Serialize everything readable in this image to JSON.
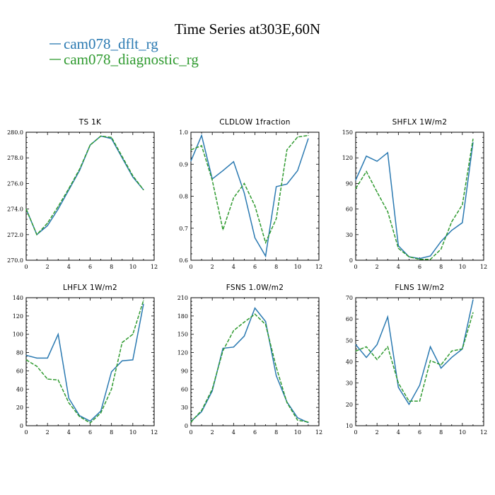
{
  "figure": {
    "title": "Time Series at303E,60N",
    "legend": [
      {
        "label": "cam078_dflt_rg",
        "color": "#2a79b1"
      },
      {
        "label": "cam078_diagnostic_rg",
        "color": "#2f9a2f"
      }
    ]
  },
  "chart_data": [
    {
      "type": "line",
      "title": "TS   1K",
      "x": [
        0,
        1,
        2,
        3,
        4,
        5,
        6,
        7,
        8,
        9,
        10,
        11
      ],
      "xlim": [
        0,
        12
      ],
      "xticks": [
        0,
        2,
        4,
        6,
        8,
        10,
        12
      ],
      "ylim": [
        270,
        280
      ],
      "yticks": [
        "270.0",
        "272.0",
        "274.0",
        "276.0",
        "278.0",
        "280.0"
      ],
      "series": [
        {
          "name": "cam078_dflt_rg",
          "color": "#2a79b1",
          "dash": "solid",
          "values": [
            274.0,
            272.0,
            272.7,
            274.0,
            275.5,
            277.0,
            279.0,
            279.7,
            279.5,
            278.0,
            276.5,
            275.5
          ]
        },
        {
          "name": "cam078_diagnostic_rg",
          "color": "#2f9a2f",
          "dash": "dashed",
          "values": [
            274.0,
            272.0,
            272.9,
            274.2,
            275.6,
            277.1,
            279.0,
            279.7,
            279.6,
            278.1,
            276.6,
            275.5
          ]
        }
      ]
    },
    {
      "type": "line",
      "title": "CLDLOW   1fraction",
      "x": [
        0,
        1,
        2,
        3,
        4,
        5,
        6,
        7,
        8,
        9,
        10,
        11
      ],
      "xlim": [
        0,
        12
      ],
      "xticks": [
        0,
        2,
        4,
        6,
        8,
        10,
        12
      ],
      "ylim": [
        0.6,
        1.0
      ],
      "yticks": [
        "0.6",
        "0.7",
        "0.8",
        "0.9",
        "1.0"
      ],
      "series": [
        {
          "name": "cam078_dflt_rg",
          "color": "#2a79b1",
          "dash": "solid",
          "values": [
            0.91,
            0.99,
            0.854,
            0.88,
            0.908,
            0.81,
            0.67,
            0.613,
            0.83,
            0.838,
            0.88,
            0.98
          ]
        },
        {
          "name": "cam078_diagnostic_rg",
          "color": "#2f9a2f",
          "dash": "dashed",
          "values": [
            0.945,
            0.958,
            0.85,
            0.695,
            0.795,
            0.84,
            0.77,
            0.655,
            0.73,
            0.945,
            0.985,
            0.99
          ]
        }
      ]
    },
    {
      "type": "line",
      "title": "SHFLX   1W/m2",
      "x": [
        0,
        1,
        2,
        3,
        4,
        5,
        6,
        7,
        8,
        9,
        10,
        11
      ],
      "xlim": [
        0,
        12
      ],
      "xticks": [
        0,
        2,
        4,
        6,
        8,
        10,
        12
      ],
      "ylim": [
        0,
        150
      ],
      "yticks": [
        "0",
        "30",
        "60",
        "90",
        "120",
        "150"
      ],
      "series": [
        {
          "name": "cam078_dflt_rg",
          "color": "#2a79b1",
          "dash": "solid",
          "values": [
            94,
            122,
            116,
            126,
            17,
            4,
            2,
            5,
            22,
            35,
            44,
            138
          ]
        },
        {
          "name": "cam078_diagnostic_rg",
          "color": "#2f9a2f",
          "dash": "dashed",
          "values": [
            84,
            104,
            80,
            57,
            14,
            4,
            1,
            1,
            13,
            45,
            65,
            142
          ]
        }
      ]
    },
    {
      "type": "line",
      "title": "LHFLX   1W/m2",
      "x": [
        0,
        1,
        2,
        3,
        4,
        5,
        6,
        7,
        8,
        9,
        10,
        11
      ],
      "xlim": [
        0,
        12
      ],
      "xticks": [
        0,
        2,
        4,
        6,
        8,
        10,
        12
      ],
      "ylim": [
        0,
        140
      ],
      "yticks": [
        "0",
        "20",
        "40",
        "60",
        "80",
        "100",
        "120",
        "140"
      ],
      "series": [
        {
          "name": "cam078_dflt_rg",
          "color": "#2a79b1",
          "dash": "solid",
          "values": [
            77,
            74,
            74,
            100,
            30,
            11,
            5,
            16,
            59,
            71,
            72,
            133
          ]
        },
        {
          "name": "cam078_diagnostic_rg",
          "color": "#2f9a2f",
          "dash": "dashed",
          "values": [
            72,
            65,
            51,
            50,
            25,
            10,
            3,
            14,
            40,
            91,
            100,
            137
          ]
        }
      ]
    },
    {
      "type": "line",
      "title": "FSNS   1.0W/m2",
      "x": [
        0,
        1,
        2,
        3,
        4,
        5,
        6,
        7,
        8,
        9,
        10,
        11
      ],
      "xlim": [
        0,
        12
      ],
      "xticks": [
        0,
        2,
        4,
        6,
        8,
        10,
        12
      ],
      "ylim": [
        0,
        210
      ],
      "yticks": [
        "0",
        "30",
        "60",
        "90",
        "120",
        "150",
        "180",
        "210"
      ],
      "series": [
        {
          "name": "cam078_dflt_rg",
          "color": "#2a79b1",
          "dash": "solid",
          "values": [
            7,
            23,
            57,
            127,
            129,
            147,
            193,
            171,
            82,
            39,
            13,
            5
          ]
        },
        {
          "name": "cam078_diagnostic_rg",
          "color": "#2f9a2f",
          "dash": "dashed",
          "values": [
            6,
            25,
            60,
            123,
            156,
            170,
            183,
            166,
            96,
            38,
            9,
            6
          ]
        }
      ]
    },
    {
      "type": "line",
      "title": "FLNS   1W/m2",
      "x": [
        0,
        1,
        2,
        3,
        4,
        5,
        6,
        7,
        8,
        9,
        10,
        11
      ],
      "xlim": [
        0,
        12
      ],
      "xticks": [
        0,
        2,
        4,
        6,
        8,
        10,
        12
      ],
      "ylim": [
        10,
        70
      ],
      "yticks": [
        "10",
        "20",
        "30",
        "40",
        "50",
        "60",
        "70"
      ],
      "series": [
        {
          "name": "cam078_dflt_rg",
          "color": "#2a79b1",
          "dash": "solid",
          "values": [
            48,
            42,
            48,
            61,
            28,
            20,
            29,
            47,
            37,
            42,
            46,
            69
          ]
        },
        {
          "name": "cam078_diagnostic_rg",
          "color": "#2f9a2f",
          "dash": "dashed",
          "values": [
            45,
            47,
            41,
            47,
            30,
            21.5,
            21.5,
            40.5,
            38.5,
            45,
            46,
            63
          ]
        }
      ]
    }
  ]
}
